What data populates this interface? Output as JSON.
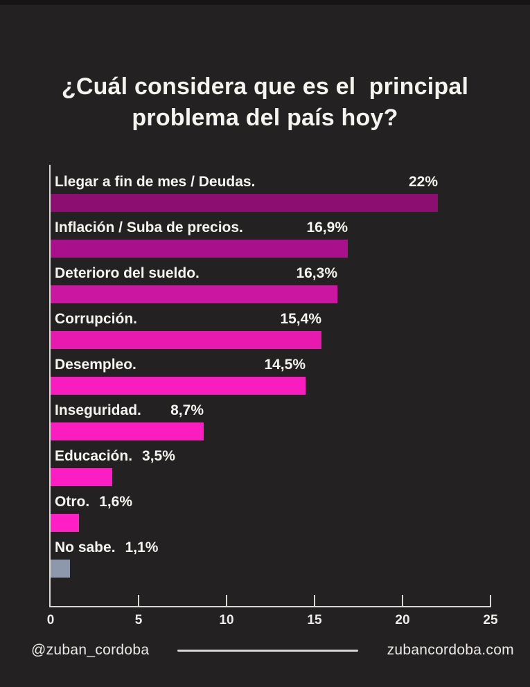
{
  "title": {
    "line1": "¿Cuál considera que es el  principal",
    "line2": "problema del país hoy?"
  },
  "chart_data": {
    "type": "bar",
    "orientation": "horizontal",
    "title": "¿Cuál considera que es el principal problema del país hoy?",
    "categories": [
      "Llegar a fin de mes / Deudas.",
      "Inflación / Suba de precios.",
      "Deterioro del sueldo.",
      "Corrupción.",
      "Desempleo.",
      "Inseguridad.",
      "Educación.",
      "Otro.",
      "No sabe."
    ],
    "values": [
      22,
      16.9,
      16.3,
      15.4,
      14.5,
      8.7,
      3.5,
      1.6,
      1.1
    ],
    "value_labels": [
      "22%",
      "16,9%",
      "16,3%",
      "15,4%",
      "14,5%",
      "8,7%",
      "3,5%",
      "1,6%",
      "1,1%"
    ],
    "bar_colors": [
      "#8c0e70",
      "#a9118c",
      "#cb16a2",
      "#e719ae",
      "#f91cbe",
      "#fc1dc1",
      "#fd1ec3",
      "#ff1fc5",
      "#8e98ac"
    ],
    "xlim": [
      0,
      25
    ],
    "x_ticks": [
      0,
      5,
      10,
      15,
      20,
      25
    ],
    "grid": false,
    "legend": "none",
    "axis_color": "#d9d7d4"
  },
  "footer": {
    "handle": "@zuban_cordoba",
    "website": "zubancordoba.com"
  },
  "colors": {
    "background": "#242122",
    "text": "#f6f4ef",
    "accent_dark": "#8c0e70",
    "accent_bright": "#ff1fc5",
    "gray_bar": "#8e98ac"
  }
}
